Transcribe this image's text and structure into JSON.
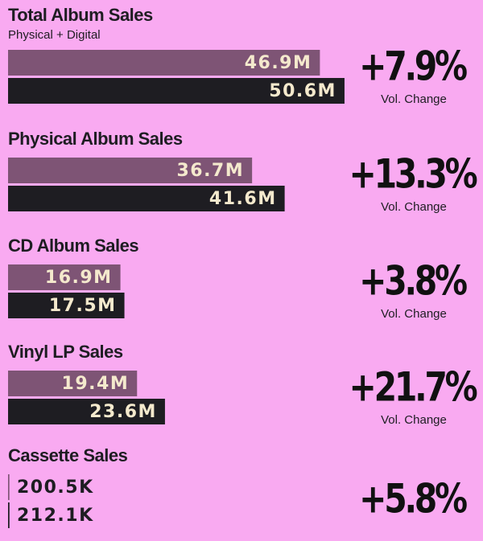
{
  "chart_data": [
    {
      "type": "bar",
      "title": "Total Album Sales",
      "subtitle": "Physical + Digital",
      "values": [
        46.9,
        50.6
      ],
      "value_labels": [
        "46.9M",
        "50.6M"
      ],
      "colors": [
        "#7e5475",
        "#1e1d22"
      ],
      "change": {
        "value": 7.9,
        "label": "+7.9%"
      },
      "change_note": "Vol. Change"
    },
    {
      "type": "bar",
      "title": "Physical Album Sales",
      "values": [
        36.7,
        41.6
      ],
      "value_labels": [
        "36.7M",
        "41.6M"
      ],
      "colors": [
        "#7e5475",
        "#1e1d22"
      ],
      "change": {
        "value": 13.3,
        "label": "+13.3%"
      },
      "change_note": "Vol. Change"
    },
    {
      "type": "bar",
      "title": "CD Album Sales",
      "values": [
        16.9,
        17.5
      ],
      "value_labels": [
        "16.9M",
        "17.5M"
      ],
      "colors": [
        "#7e5475",
        "#1e1d22"
      ],
      "change": {
        "value": 3.8,
        "label": "+3.8%"
      },
      "change_note": "Vol. Change"
    },
    {
      "type": "bar",
      "title": "Vinyl LP Sales",
      "values": [
        19.4,
        23.6
      ],
      "value_labels": [
        "19.4M",
        "23.6M"
      ],
      "colors": [
        "#7e5475",
        "#1e1d22"
      ],
      "change": {
        "value": 21.7,
        "label": "+21.7%"
      },
      "change_note": "Vol. Change"
    },
    {
      "type": "bar",
      "title": "Cassette Sales",
      "values": [
        0.2005,
        0.2121
      ],
      "value_labels": [
        "200.5K",
        "212.1K"
      ],
      "colors": [
        "#7e5475",
        "#1e1d22"
      ],
      "change": {
        "value": 5.8,
        "label": "+5.8%"
      }
    }
  ]
}
